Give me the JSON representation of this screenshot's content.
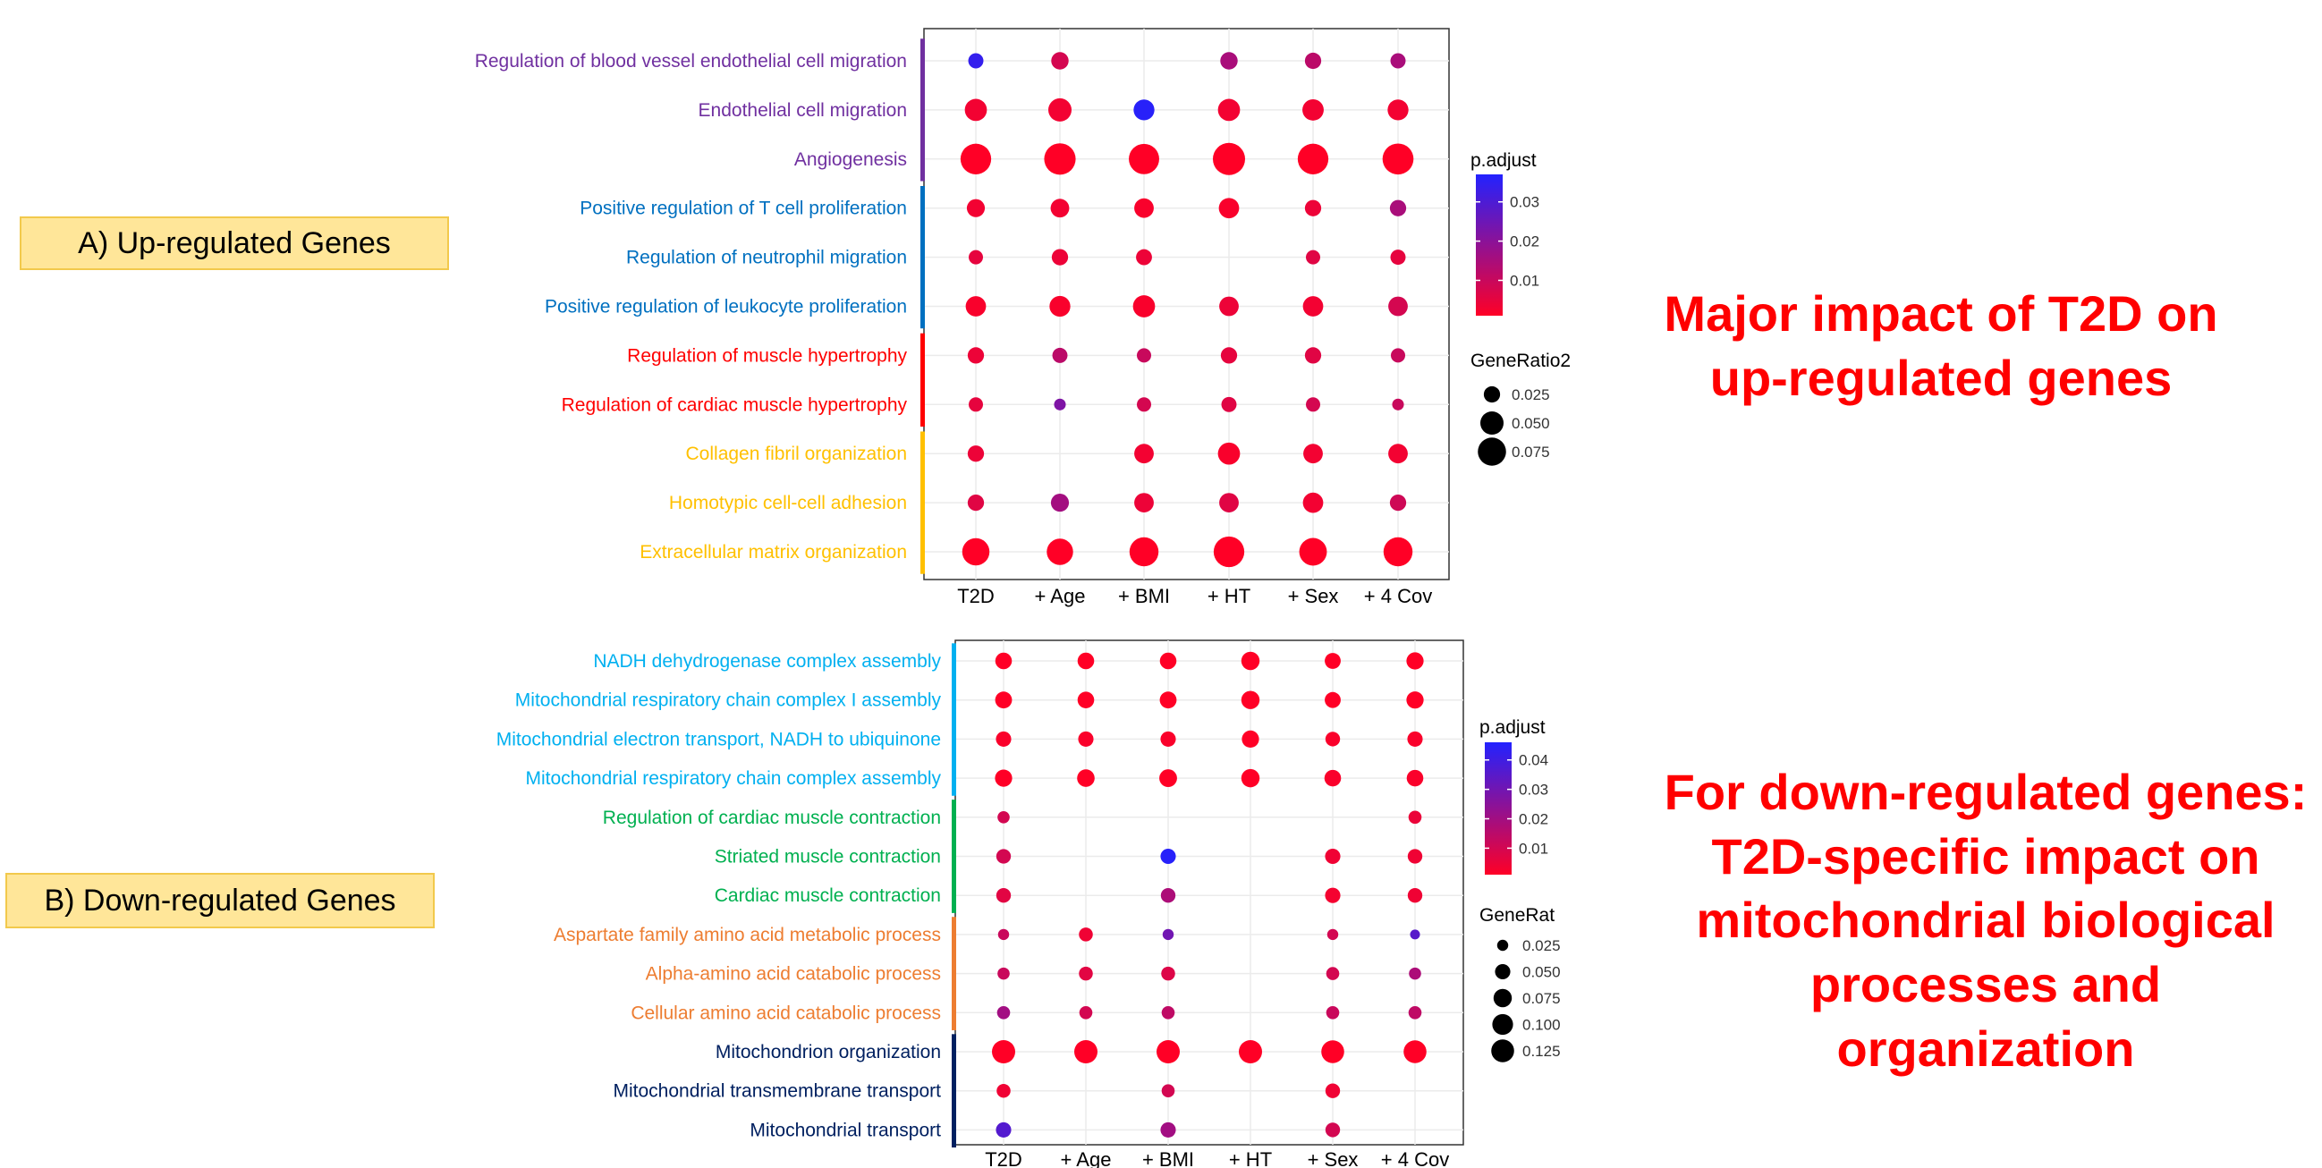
{
  "panels": {
    "up": {
      "label": "A) Up-regulated Genes"
    },
    "down": {
      "label": "B) Down-regulated Genes"
    }
  },
  "headlines": {
    "up": {
      "line1": "Major impact of T2D on",
      "line2": "up-regulated genes"
    },
    "down": {
      "line1": "For down-regulated genes:",
      "line2": "T2D-specific impact on",
      "line3": "mitochondrial biological",
      "line4": "processes and organization"
    }
  },
  "colors": {
    "low_p": "#ff0026",
    "high_p": "#2222ff",
    "group_purple": "#7030a0",
    "group_blue": "#0070c0",
    "group_red": "#ff0000",
    "group_gold": "#ffc000",
    "group_cyan": "#00b0f0",
    "group_green": "#00b050",
    "group_orange": "#ed7d31",
    "group_navy": "#002060"
  },
  "chart_data": [
    {
      "type": "scatter",
      "subtype": "dot-plot",
      "panel": "up",
      "categories": [
        "T2D",
        "+ Age",
        "+ BMI",
        "+ HT",
        "+ Sex",
        "+ 4 Cov"
      ],
      "terms": [
        {
          "label": "Regulation of blood vessel endothelial cell migration",
          "group_color": "#7030a0"
        },
        {
          "label": "Endothelial cell migration",
          "group_color": "#7030a0"
        },
        {
          "label": "Angiogenesis",
          "group_color": "#7030a0"
        },
        {
          "label": "Positive regulation of T cell proliferation",
          "group_color": "#0070c0"
        },
        {
          "label": "Regulation of neutrophil migration",
          "group_color": "#0070c0"
        },
        {
          "label": "Positive regulation of leukocyte proliferation",
          "group_color": "#0070c0"
        },
        {
          "label": "Regulation of muscle hypertrophy",
          "group_color": "#ff0000"
        },
        {
          "label": "Regulation of cardiac muscle hypertrophy",
          "group_color": "#ff0000"
        },
        {
          "label": "Collagen fibril organization",
          "group_color": "#ffc000"
        },
        {
          "label": "Homotypic cell-cell adhesion",
          "group_color": "#ffc000"
        },
        {
          "label": "Extracellular matrix organization",
          "group_color": "#ffc000"
        }
      ],
      "points": [
        [
          {
            "r": 0.022,
            "p": 0.034
          },
          {
            "r": 0.028,
            "p": 0.008
          },
          null,
          {
            "r": 0.028,
            "p": 0.015
          },
          {
            "r": 0.025,
            "p": 0.012
          },
          {
            "r": 0.022,
            "p": 0.015
          }
        ],
        [
          {
            "r": 0.045,
            "p": 0.003
          },
          {
            "r": 0.05,
            "p": 0.003
          },
          {
            "r": 0.04,
            "p": 0.036
          },
          {
            "r": 0.045,
            "p": 0.003
          },
          {
            "r": 0.042,
            "p": 0.003
          },
          {
            "r": 0.04,
            "p": 0.003
          }
        ],
        [
          {
            "r": 0.09,
            "p": 0.001
          },
          {
            "r": 0.095,
            "p": 0.001
          },
          {
            "r": 0.088,
            "p": 0.001
          },
          {
            "r": 0.1,
            "p": 0.001
          },
          {
            "r": 0.09,
            "p": 0.001
          },
          {
            "r": 0.092,
            "p": 0.001
          }
        ],
        [
          {
            "r": 0.03,
            "p": 0.003
          },
          {
            "r": 0.032,
            "p": 0.003
          },
          {
            "r": 0.035,
            "p": 0.002
          },
          {
            "r": 0.038,
            "p": 0.002
          },
          {
            "r": 0.025,
            "p": 0.004
          },
          {
            "r": 0.025,
            "p": 0.015
          }
        ],
        [
          {
            "r": 0.02,
            "p": 0.005
          },
          {
            "r": 0.025,
            "p": 0.004
          },
          {
            "r": 0.024,
            "p": 0.004
          },
          null,
          {
            "r": 0.02,
            "p": 0.006
          },
          {
            "r": 0.022,
            "p": 0.005
          }
        ],
        [
          {
            "r": 0.038,
            "p": 0.002
          },
          {
            "r": 0.04,
            "p": 0.002
          },
          {
            "r": 0.045,
            "p": 0.002
          },
          {
            "r": 0.035,
            "p": 0.004
          },
          {
            "r": 0.038,
            "p": 0.003
          },
          {
            "r": 0.035,
            "p": 0.008
          }
        ],
        [
          {
            "r": 0.025,
            "p": 0.004
          },
          {
            "r": 0.022,
            "p": 0.012
          },
          {
            "r": 0.02,
            "p": 0.01
          },
          {
            "r": 0.025,
            "p": 0.005
          },
          {
            "r": 0.025,
            "p": 0.006
          },
          {
            "r": 0.02,
            "p": 0.01
          }
        ],
        [
          {
            "r": 0.02,
            "p": 0.005
          },
          {
            "r": 0.015,
            "p": 0.022
          },
          {
            "r": 0.02,
            "p": 0.008
          },
          {
            "r": 0.022,
            "p": 0.006
          },
          {
            "r": 0.02,
            "p": 0.008
          },
          {
            "r": 0.015,
            "p": 0.01
          }
        ],
        [
          {
            "r": 0.025,
            "p": 0.004
          },
          null,
          {
            "r": 0.035,
            "p": 0.003
          },
          {
            "r": 0.045,
            "p": 0.002
          },
          {
            "r": 0.035,
            "p": 0.003
          },
          {
            "r": 0.035,
            "p": 0.003
          }
        ],
        [
          {
            "r": 0.025,
            "p": 0.006
          },
          {
            "r": 0.03,
            "p": 0.016
          },
          {
            "r": 0.035,
            "p": 0.004
          },
          {
            "r": 0.035,
            "p": 0.006
          },
          {
            "r": 0.038,
            "p": 0.003
          },
          {
            "r": 0.025,
            "p": 0.009
          }
        ],
        [
          {
            "r": 0.07,
            "p": 0.001
          },
          {
            "r": 0.065,
            "p": 0.001
          },
          {
            "r": 0.08,
            "p": 0.001
          },
          {
            "r": 0.09,
            "p": 0.001
          },
          {
            "r": 0.072,
            "p": 0.001
          },
          {
            "r": 0.08,
            "p": 0.001
          }
        ]
      ],
      "color_legend": {
        "title": "p.adjust",
        "ticks": [
          0.01,
          0.02,
          0.03
        ],
        "tick_labels": [
          "0.01",
          "0.02",
          "0.03"
        ],
        "range": [
          0.001,
          0.037
        ]
      },
      "size_legend": {
        "title": "GeneRatio2",
        "values": [
          0.025,
          0.05,
          0.075
        ],
        "labels": [
          "0.025",
          "0.050",
          "0.075"
        ]
      },
      "legend_position": "right"
    },
    {
      "type": "scatter",
      "subtype": "dot-plot",
      "panel": "down",
      "categories": [
        "T2D",
        "+ Age",
        "+ BMI",
        "+ HT",
        "+ Sex",
        "+ 4 Cov"
      ],
      "terms": [
        {
          "label": "NADH dehydrogenase complex assembly",
          "group_color": "#00b0f0"
        },
        {
          "label": "Mitochondrial respiratory chain complex I assembly",
          "group_color": "#00b0f0"
        },
        {
          "label": "Mitochondrial electron transport, NADH to ubiquinone",
          "group_color": "#00b0f0"
        },
        {
          "label": "Mitochondrial respiratory chain complex assembly",
          "group_color": "#00b0f0"
        },
        {
          "label": "Regulation of cardiac muscle contraction",
          "group_color": "#00b050"
        },
        {
          "label": "Striated muscle contraction",
          "group_color": "#00b050"
        },
        {
          "label": "Cardiac muscle contraction",
          "group_color": "#00b050"
        },
        {
          "label": "Aspartate family amino acid metabolic process",
          "group_color": "#ed7d31"
        },
        {
          "label": "Alpha-amino acid catabolic process",
          "group_color": "#ed7d31"
        },
        {
          "label": "Cellular amino acid catabolic process",
          "group_color": "#ed7d31"
        },
        {
          "label": "Mitochondrion organization",
          "group_color": "#002060"
        },
        {
          "label": "Mitochondrial transmembrane transport",
          "group_color": "#002060"
        },
        {
          "label": "Mitochondrial transport",
          "group_color": "#002060"
        }
      ],
      "points": [
        [
          {
            "r": 0.06,
            "p": 0.001
          },
          {
            "r": 0.06,
            "p": 0.001
          },
          {
            "r": 0.06,
            "p": 0.001
          },
          {
            "r": 0.075,
            "p": 0.001
          },
          {
            "r": 0.055,
            "p": 0.001
          },
          {
            "r": 0.065,
            "p": 0.001
          }
        ],
        [
          {
            "r": 0.062,
            "p": 0.001
          },
          {
            "r": 0.06,
            "p": 0.001
          },
          {
            "r": 0.062,
            "p": 0.001
          },
          {
            "r": 0.075,
            "p": 0.001
          },
          {
            "r": 0.055,
            "p": 0.001
          },
          {
            "r": 0.065,
            "p": 0.001
          }
        ],
        [
          {
            "r": 0.05,
            "p": 0.002
          },
          {
            "r": 0.05,
            "p": 0.002
          },
          {
            "r": 0.05,
            "p": 0.002
          },
          {
            "r": 0.065,
            "p": 0.001
          },
          {
            "r": 0.045,
            "p": 0.002
          },
          {
            "r": 0.05,
            "p": 0.002
          }
        ],
        [
          {
            "r": 0.065,
            "p": 0.001
          },
          {
            "r": 0.068,
            "p": 0.001
          },
          {
            "r": 0.07,
            "p": 0.001
          },
          {
            "r": 0.075,
            "p": 0.001
          },
          {
            "r": 0.06,
            "p": 0.002
          },
          {
            "r": 0.06,
            "p": 0.002
          }
        ],
        [
          {
            "r": 0.03,
            "p": 0.01
          },
          null,
          null,
          null,
          null,
          {
            "r": 0.035,
            "p": 0.005
          }
        ],
        [
          {
            "r": 0.045,
            "p": 0.01
          },
          null,
          {
            "r": 0.05,
            "p": 0.045
          },
          null,
          {
            "r": 0.05,
            "p": 0.004
          },
          {
            "r": 0.045,
            "p": 0.004
          }
        ],
        [
          {
            "r": 0.045,
            "p": 0.007
          },
          null,
          {
            "r": 0.045,
            "p": 0.018
          },
          null,
          {
            "r": 0.05,
            "p": 0.003
          },
          {
            "r": 0.045,
            "p": 0.004
          }
        ],
        [
          {
            "r": 0.025,
            "p": 0.012
          },
          {
            "r": 0.04,
            "p": 0.004
          },
          {
            "r": 0.025,
            "p": 0.03
          },
          null,
          {
            "r": 0.025,
            "p": 0.01
          },
          {
            "r": 0.02,
            "p": 0.035
          }
        ],
        [
          {
            "r": 0.03,
            "p": 0.012
          },
          {
            "r": 0.04,
            "p": 0.007
          },
          {
            "r": 0.04,
            "p": 0.008
          },
          null,
          {
            "r": 0.035,
            "p": 0.01
          },
          {
            "r": 0.03,
            "p": 0.018
          }
        ],
        [
          {
            "r": 0.035,
            "p": 0.02
          },
          {
            "r": 0.035,
            "p": 0.01
          },
          {
            "r": 0.035,
            "p": 0.014
          },
          null,
          {
            "r": 0.035,
            "p": 0.012
          },
          {
            "r": 0.035,
            "p": 0.014
          }
        ],
        [
          {
            "r": 0.13,
            "p": 0.001
          },
          {
            "r": 0.13,
            "p": 0.001
          },
          {
            "r": 0.13,
            "p": 0.001
          },
          {
            "r": 0.13,
            "p": 0.001
          },
          {
            "r": 0.125,
            "p": 0.001
          },
          {
            "r": 0.125,
            "p": 0.001
          }
        ],
        [
          {
            "r": 0.04,
            "p": 0.004
          },
          null,
          {
            "r": 0.035,
            "p": 0.01
          },
          null,
          {
            "r": 0.045,
            "p": 0.004
          },
          null
        ],
        [
          {
            "r": 0.05,
            "p": 0.036
          },
          null,
          {
            "r": 0.05,
            "p": 0.02
          },
          null,
          {
            "r": 0.045,
            "p": 0.01
          },
          null
        ]
      ],
      "color_legend": {
        "title": "p.adjust",
        "ticks": [
          0.01,
          0.02,
          0.03,
          0.04
        ],
        "tick_labels": [
          "0.01",
          "0.02",
          "0.03",
          "0.04"
        ],
        "range": [
          0.001,
          0.046
        ]
      },
      "size_legend": {
        "title": "GeneRat",
        "values": [
          0.025,
          0.05,
          0.075,
          0.1,
          0.125
        ],
        "labels": [
          "0.025",
          "0.050",
          "0.075",
          "0.100",
          "0.125"
        ]
      },
      "legend_position": "right"
    }
  ]
}
